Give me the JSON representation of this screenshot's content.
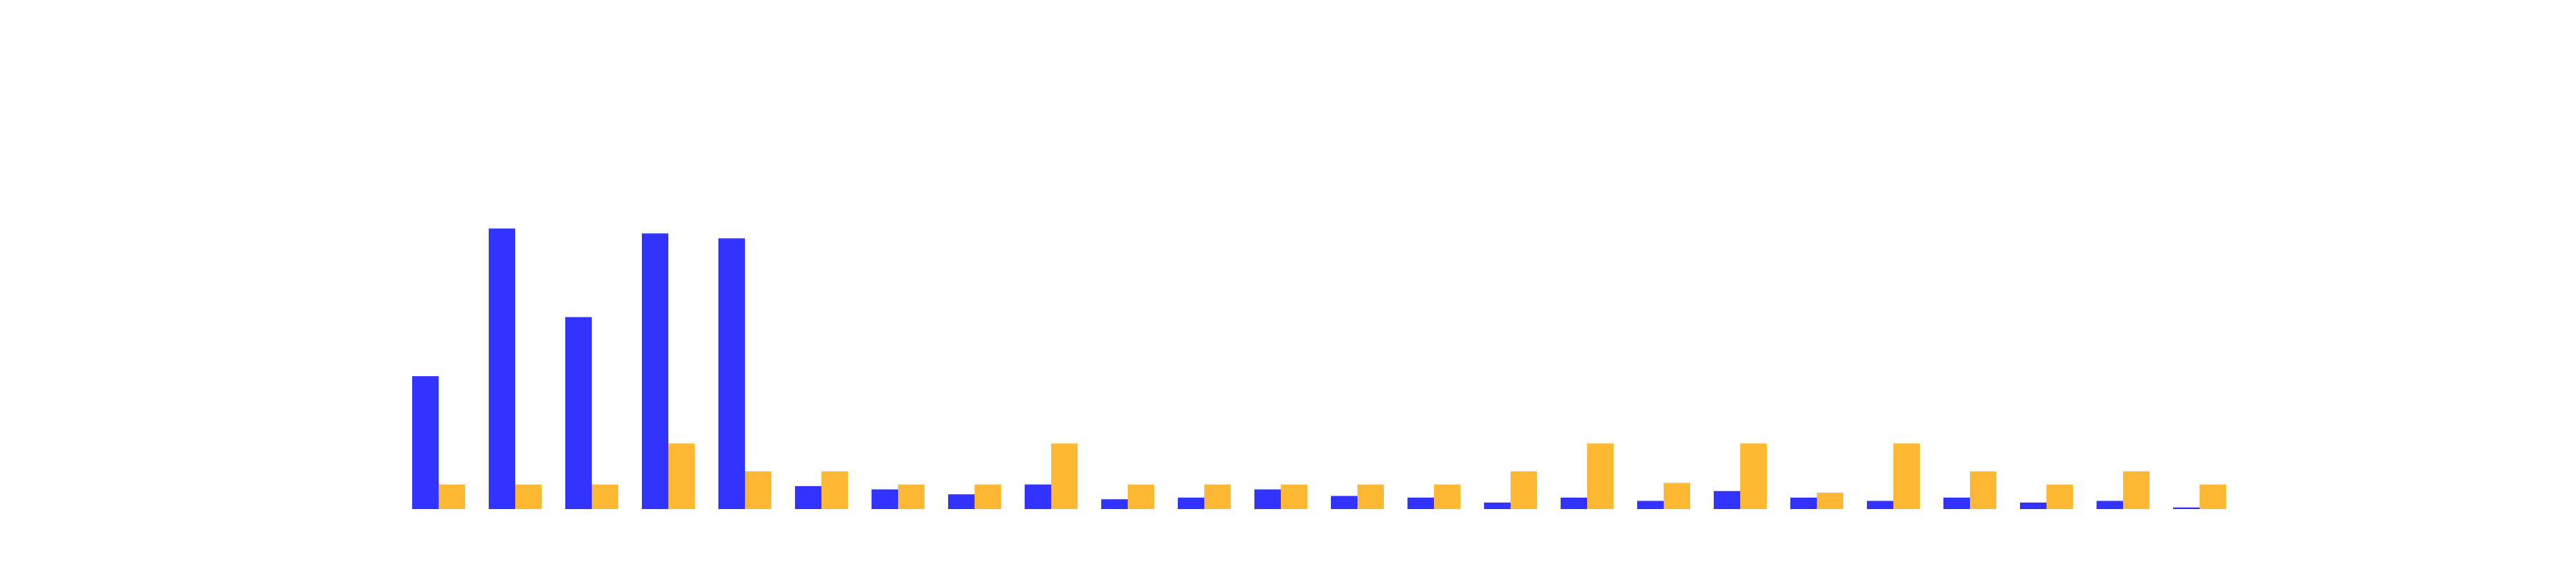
{
  "chart_data": {
    "type": "bar",
    "categories": [
      null,
      null,
      null,
      null,
      null,
      null,
      null,
      null,
      null,
      null,
      null,
      null,
      null,
      null,
      null,
      null,
      null,
      null,
      null,
      null,
      null,
      null,
      null,
      null
    ],
    "series": [
      {
        "color": "#3333ff",
        "values": [
          81,
          171,
          117,
          168,
          165,
          14,
          12,
          9,
          15,
          6,
          7,
          12,
          8,
          7,
          4,
          7,
          5,
          11,
          7,
          5,
          7,
          4,
          5,
          1
        ]
      },
      {
        "color": "#ffb833",
        "values": [
          15,
          15,
          15,
          40,
          23,
          23,
          15,
          15,
          40,
          15,
          15,
          15,
          15,
          15,
          23,
          40,
          16,
          40,
          10,
          40,
          23,
          15,
          23,
          15
        ]
      }
    ],
    "ylim": [
      0,
      200
    ]
  }
}
